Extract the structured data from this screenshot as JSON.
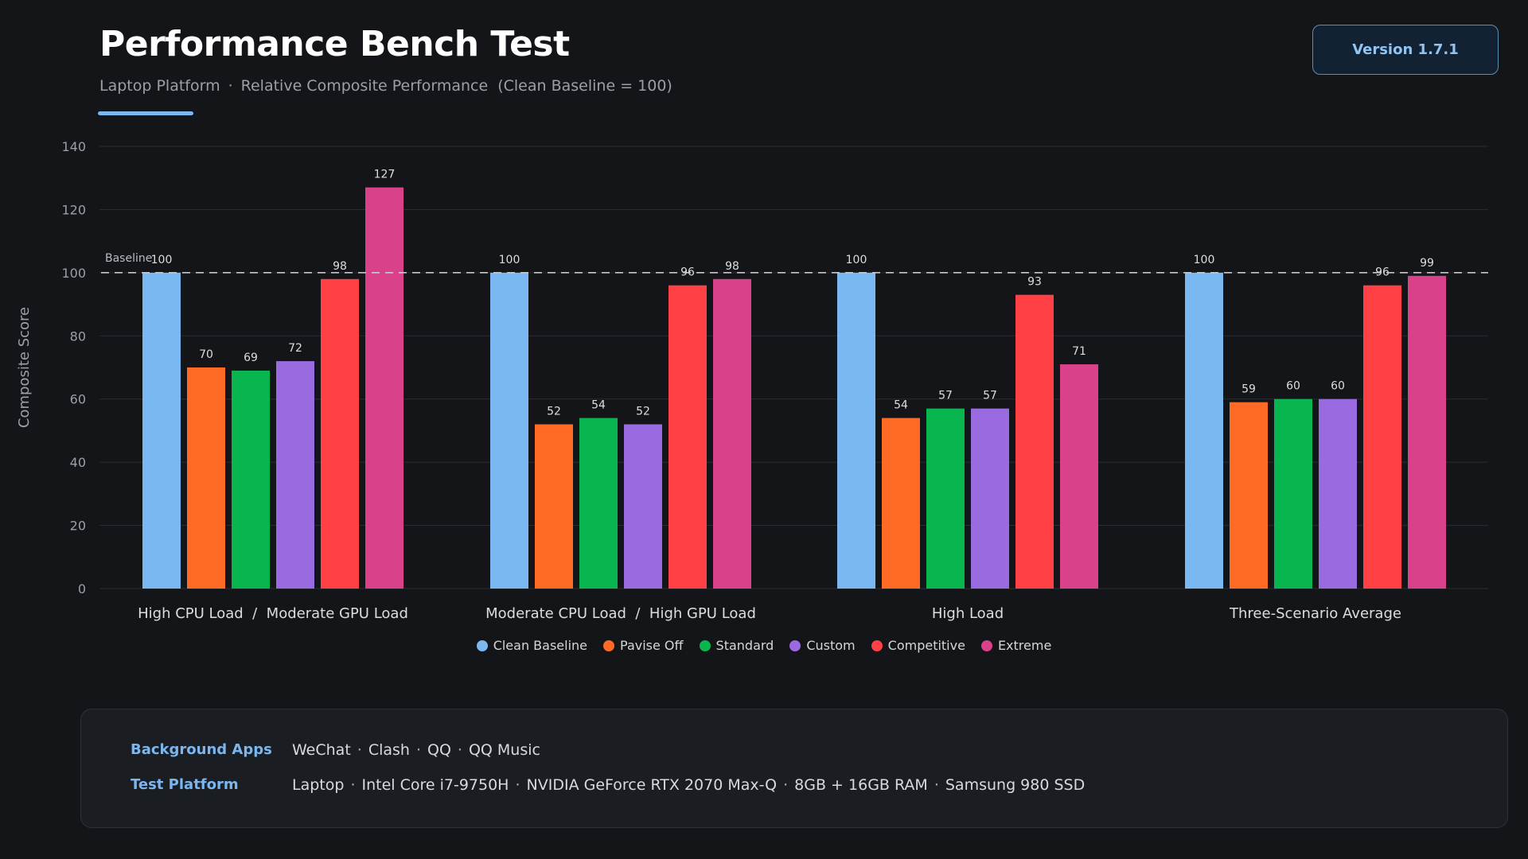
{
  "header": {
    "title": "Performance Bench Test",
    "subtitle_parts": [
      "Laptop Platform",
      "Relative Composite Performance  (Clean Baseline = 100)"
    ],
    "separator": "·",
    "version_label": "Version 1.7.1"
  },
  "chart_data": {
    "type": "bar",
    "title": "Performance Bench Test",
    "subtitle": "Laptop Platform · Relative Composite Performance (Clean Baseline = 100)",
    "ylabel": "Composite Score",
    "xlabel": "",
    "ylim": [
      0,
      140
    ],
    "yticks": [
      0,
      20,
      40,
      60,
      80,
      100,
      120,
      140
    ],
    "grid": true,
    "legend_position": "bottom-center",
    "baseline": {
      "value": 100,
      "label": "Baseline",
      "style": "dashed"
    },
    "categories": [
      "High CPU Load  /  Moderate GPU Load",
      "Moderate CPU Load  /  High GPU Load",
      "High Load",
      "Three-Scenario Average"
    ],
    "series": [
      {
        "name": "Clean Baseline",
        "color": "#7ab8f2",
        "values": [
          100,
          100,
          100,
          100
        ]
      },
      {
        "name": "Pavise Off",
        "color": "#ff6b24",
        "values": [
          70,
          52,
          54,
          59
        ]
      },
      {
        "name": "Standard",
        "color": "#08b54e",
        "values": [
          69,
          54,
          57,
          60
        ]
      },
      {
        "name": "Custom",
        "color": "#9a6ae0",
        "values": [
          72,
          52,
          57,
          60
        ]
      },
      {
        "name": "Competitive",
        "color": "#ff4044",
        "values": [
          98,
          96,
          93,
          96
        ]
      },
      {
        "name": "Extreme",
        "color": "#d9428a",
        "values": [
          127,
          98,
          71,
          99
        ]
      }
    ]
  },
  "info": {
    "rows": [
      {
        "label": "Background Apps",
        "items": [
          "WeChat",
          "Clash",
          "QQ",
          "QQ Music"
        ]
      },
      {
        "label": "Test Platform",
        "items": [
          "Laptop",
          "Intel Core i7-9750H",
          "NVIDIA GeForce RTX 2070 Max-Q",
          "8GB + 16GB RAM",
          "Samsung 980 SSD"
        ]
      }
    ]
  }
}
